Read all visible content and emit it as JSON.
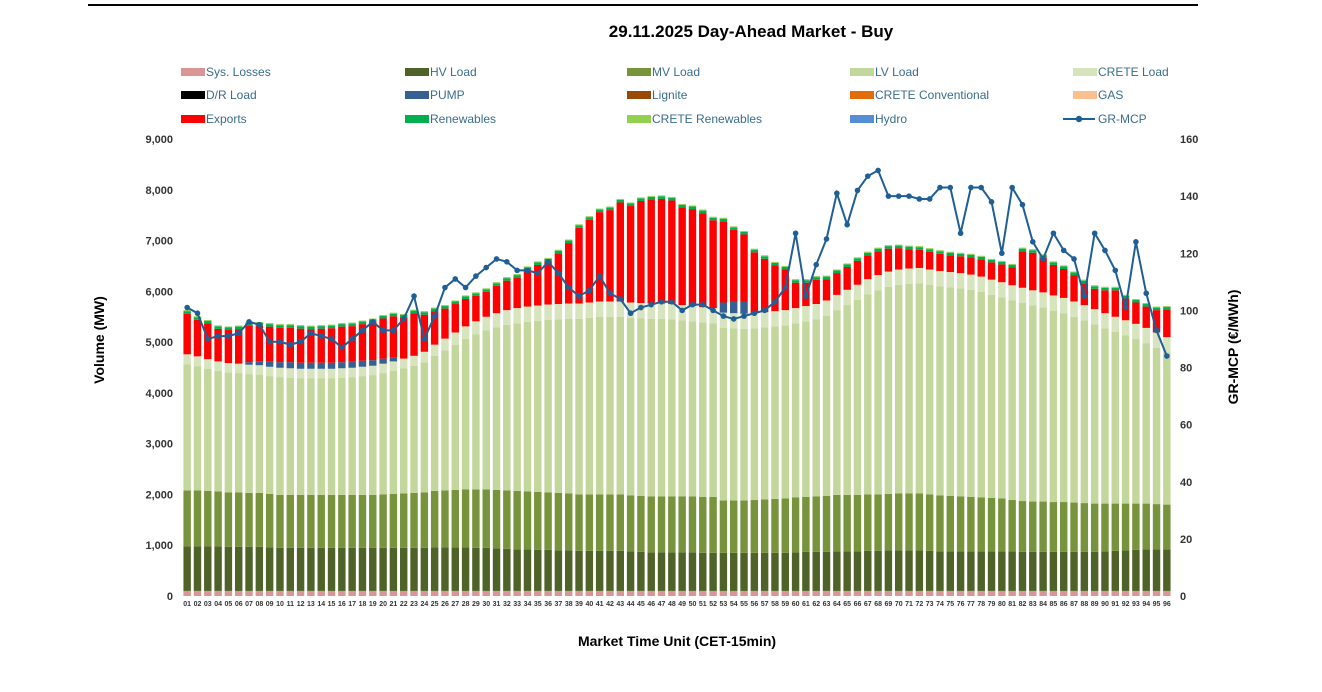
{
  "chart_data": {
    "type": "bar",
    "title": "29.11.2025  Day-Ahead Market - Buy",
    "xlabel": "Market Time Unit (CET-15min)",
    "ylabel": "Volume (MW)",
    "y2label": "GR-MCP (€/MWh)",
    "ylim": [
      0,
      9000
    ],
    "y2lim": [
      0,
      160
    ],
    "yticks": [
      "0",
      "1,000",
      "2,000",
      "3,000",
      "4,000",
      "5,000",
      "6,000",
      "7,000",
      "8,000",
      "9,000"
    ],
    "y2ticks": [
      "0",
      "20",
      "40",
      "60",
      "80",
      "100",
      "120",
      "140",
      "160"
    ],
    "categories": [
      "01",
      "02",
      "03",
      "04",
      "05",
      "06",
      "07",
      "08",
      "09",
      "10",
      "11",
      "12",
      "13",
      "14",
      "15",
      "16",
      "17",
      "18",
      "19",
      "20",
      "21",
      "22",
      "23",
      "24",
      "25",
      "26",
      "27",
      "28",
      "29",
      "30",
      "31",
      "32",
      "33",
      "34",
      "35",
      "36",
      "37",
      "38",
      "39",
      "40",
      "41",
      "42",
      "43",
      "44",
      "45",
      "46",
      "47",
      "48",
      "49",
      "50",
      "51",
      "52",
      "53",
      "54",
      "55",
      "56",
      "57",
      "58",
      "59",
      "60",
      "61",
      "62",
      "63",
      "64",
      "65",
      "66",
      "67",
      "68",
      "69",
      "70",
      "71",
      "72",
      "73",
      "74",
      "75",
      "76",
      "77",
      "78",
      "79",
      "80",
      "81",
      "82",
      "83",
      "84",
      "85",
      "86",
      "87",
      "88",
      "89",
      "90",
      "91",
      "92",
      "93",
      "94",
      "95",
      "96"
    ],
    "legend": [
      {
        "name": "Sys. Losses",
        "color": "#d99694",
        "kind": "box"
      },
      {
        "name": "HV Load",
        "color": "#4f6228",
        "kind": "box"
      },
      {
        "name": "MV Load",
        "color": "#77933c",
        "kind": "box"
      },
      {
        "name": "LV Load",
        "color": "#c3d69b",
        "kind": "box"
      },
      {
        "name": "CRETE Load",
        "color": "#d7e4bd",
        "kind": "box"
      },
      {
        "name": "D/R Load",
        "color": "#000000",
        "kind": "box"
      },
      {
        "name": "PUMP",
        "color": "#366092",
        "kind": "box"
      },
      {
        "name": "Lignite",
        "color": "#984807",
        "kind": "box"
      },
      {
        "name": "CRETE Conventional",
        "color": "#e36c09",
        "kind": "box"
      },
      {
        "name": "GAS",
        "color": "#fac090",
        "kind": "box"
      },
      {
        "name": "Exports",
        "color": "#ff0000",
        "kind": "box"
      },
      {
        "name": "Renewables",
        "color": "#00b050",
        "kind": "box"
      },
      {
        "name": "CRETE Renewables",
        "color": "#92d050",
        "kind": "box"
      },
      {
        "name": "Hydro",
        "color": "#558ed5",
        "kind": "box"
      },
      {
        "name": "GR-MCP",
        "color": "#1f5f96",
        "kind": "line"
      }
    ],
    "series": [
      {
        "name": "Sys. Losses",
        "color": "#d99694",
        "values": [
          100,
          100,
          100,
          100,
          100,
          100,
          100,
          100,
          100,
          100,
          100,
          100,
          100,
          100,
          100,
          100,
          100,
          100,
          100,
          100,
          100,
          100,
          100,
          100,
          100,
          100,
          100,
          100,
          100,
          100,
          100,
          100,
          100,
          100,
          100,
          100,
          100,
          100,
          100,
          100,
          100,
          100,
          100,
          100,
          100,
          100,
          100,
          100,
          100,
          100,
          100,
          100,
          100,
          100,
          100,
          100,
          100,
          100,
          100,
          100,
          100,
          100,
          100,
          100,
          100,
          100,
          100,
          100,
          100,
          100,
          100,
          100,
          100,
          100,
          100,
          100,
          100,
          100,
          100,
          100,
          100,
          100,
          100,
          100,
          100,
          100,
          100,
          100,
          100,
          100,
          100,
          100,
          100,
          100,
          100,
          100
        ]
      },
      {
        "name": "HV Load",
        "color": "#4f6228",
        "values": [
          880,
          880,
          880,
          880,
          870,
          870,
          870,
          870,
          860,
          850,
          850,
          850,
          850,
          850,
          850,
          850,
          850,
          850,
          850,
          850,
          850,
          850,
          850,
          850,
          860,
          860,
          860,
          860,
          850,
          850,
          840,
          830,
          820,
          820,
          810,
          810,
          800,
          800,
          790,
          790,
          790,
          790,
          790,
          780,
          770,
          760,
          760,
          760,
          760,
          760,
          750,
          750,
          750,
          750,
          750,
          750,
          750,
          750,
          750,
          760,
          770,
          770,
          770,
          780,
          780,
          780,
          790,
          790,
          800,
          800,
          800,
          800,
          790,
          780,
          780,
          780,
          780,
          780,
          780,
          780,
          780,
          770,
          770,
          770,
          770,
          770,
          770,
          770,
          770,
          780,
          790,
          800,
          810,
          820,
          820,
          820
        ]
      },
      {
        "name": "MV Load",
        "color": "#77933c",
        "values": [
          1100,
          1100,
          1090,
          1080,
          1070,
          1070,
          1060,
          1060,
          1050,
          1040,
          1040,
          1040,
          1040,
          1040,
          1040,
          1040,
          1040,
          1040,
          1040,
          1050,
          1060,
          1070,
          1080,
          1090,
          1110,
          1120,
          1130,
          1140,
          1150,
          1150,
          1150,
          1150,
          1150,
          1140,
          1140,
          1130,
          1130,
          1120,
          1110,
          1110,
          1110,
          1110,
          1110,
          1100,
          1100,
          1100,
          1100,
          1100,
          1100,
          1100,
          1100,
          1100,
          1030,
          1030,
          1030,
          1040,
          1050,
          1060,
          1070,
          1080,
          1080,
          1090,
          1100,
          1110,
          1110,
          1110,
          1110,
          1110,
          1110,
          1120,
          1120,
          1120,
          1110,
          1100,
          1090,
          1080,
          1070,
          1060,
          1050,
          1040,
          1010,
          1000,
          990,
          990,
          980,
          980,
          970,
          960,
          950,
          940,
          930,
          920,
          910,
          900,
          890,
          880
        ]
      },
      {
        "name": "LV Load",
        "color": "#c3d69b",
        "values": [
          2480,
          2440,
          2400,
          2370,
          2360,
          2350,
          2340,
          2330,
          2320,
          2320,
          2310,
          2300,
          2300,
          2300,
          2300,
          2310,
          2320,
          2340,
          2360,
          2390,
          2420,
          2460,
          2500,
          2560,
          2660,
          2760,
          2860,
          2960,
          3050,
          3130,
          3200,
          3260,
          3300,
          3340,
          3370,
          3400,
          3420,
          3440,
          3460,
          3480,
          3500,
          3500,
          3500,
          3500,
          3500,
          3500,
          3500,
          3490,
          3470,
          3450,
          3440,
          3420,
          3400,
          3390,
          3380,
          3380,
          3390,
          3400,
          3410,
          3430,
          3460,
          3490,
          3550,
          3640,
          3740,
          3840,
          3940,
          4020,
          4080,
          4110,
          4130,
          4140,
          4130,
          4120,
          4110,
          4100,
          4080,
          4050,
          4000,
          3960,
          3930,
          3900,
          3860,
          3820,
          3770,
          3720,
          3660,
          3600,
          3530,
          3450,
          3380,
          3310,
          3240,
          3160,
          3080,
          3000
        ]
      },
      {
        "name": "CRETE Load",
        "color": "#d7e4bd",
        "values": [
          200,
          200,
          195,
          190,
          188,
          186,
          185,
          185,
          185,
          185,
          185,
          185,
          185,
          185,
          185,
          185,
          185,
          185,
          185,
          185,
          190,
          195,
          200,
          210,
          220,
          230,
          240,
          250,
          260,
          270,
          280,
          290,
          300,
          300,
          300,
          300,
          300,
          300,
          300,
          300,
          300,
          300,
          300,
          300,
          300,
          300,
          300,
          300,
          300,
          300,
          300,
          300,
          300,
          300,
          300,
          300,
          300,
          300,
          300,
          300,
          300,
          300,
          300,
          300,
          300,
          300,
          300,
          300,
          300,
          300,
          300,
          300,
          300,
          300,
          300,
          300,
          300,
          300,
          300,
          300,
          300,
          300,
          300,
          300,
          300,
          300,
          300,
          300,
          300,
          300,
          300,
          300,
          300,
          300,
          300,
          300
        ]
      },
      {
        "name": "D/R Load",
        "color": "#000000",
        "values": [
          0,
          0,
          0,
          0,
          0,
          0,
          0,
          0,
          0,
          0,
          0,
          0,
          0,
          0,
          0,
          0,
          0,
          0,
          0,
          0,
          0,
          0,
          0,
          0,
          0,
          0,
          0,
          0,
          0,
          0,
          0,
          0,
          0,
          0,
          0,
          0,
          0,
          0,
          0,
          0,
          0,
          0,
          0,
          0,
          0,
          0,
          0,
          0,
          0,
          0,
          0,
          0,
          0,
          0,
          0,
          0,
          0,
          0,
          0,
          0,
          0,
          0,
          0,
          0,
          0,
          0,
          0,
          0,
          0,
          0,
          0,
          0,
          0,
          0,
          0,
          0,
          0,
          0,
          0,
          0,
          0,
          0,
          0,
          0,
          0,
          0,
          0,
          0,
          0,
          0,
          0,
          0,
          0,
          0,
          0,
          0
        ]
      },
      {
        "name": "PUMP",
        "color": "#366092",
        "values": [
          0,
          0,
          0,
          0,
          0,
          0,
          50,
          80,
          100,
          110,
          120,
          120,
          120,
          120,
          120,
          120,
          120,
          120,
          110,
          100,
          80,
          0,
          0,
          0,
          0,
          0,
          0,
          0,
          0,
          0,
          0,
          0,
          0,
          0,
          0,
          0,
          0,
          0,
          0,
          0,
          0,
          0,
          0,
          0,
          0,
          0,
          0,
          0,
          0,
          0,
          0,
          0,
          200,
          240,
          240,
          0,
          0,
          0,
          0,
          0,
          0,
          0,
          0,
          0,
          0,
          0,
          0,
          0,
          0,
          0,
          0,
          0,
          0,
          0,
          0,
          0,
          0,
          0,
          0,
          0,
          0,
          0,
          0,
          0,
          0,
          0,
          0,
          0,
          0,
          0,
          0,
          0,
          0,
          0,
          0,
          0
        ]
      },
      {
        "name": "Exports",
        "color": "#ff0000",
        "values": [
          800,
          720,
          700,
          640,
          650,
          680,
          720,
          700,
          690,
          680,
          680,
          670,
          660,
          670,
          680,
          700,
          700,
          720,
          750,
          790,
          810,
          810,
          840,
          730,
          660,
          590,
          560,
          540,
          500,
          490,
          540,
          580,
          600,
          720,
          800,
          850,
          1000,
          1190,
          1490,
          1630,
          1760,
          1800,
          1950,
          1900,
          2010,
          2050,
          2060,
          2040,
          1920,
          1910,
          1850,
          1730,
          1600,
          1400,
          1320,
          1200,
          1050,
          900,
          800,
          500,
          460,
          480,
          420,
          430,
          450,
          470,
          470,
          470,
          450,
          420,
          380,
          360,
          350,
          340,
          330,
          330,
          340,
          340,
          340,
          350,
          350,
          720,
          740,
          680,
          600,
          570,
          520,
          430,
          400,
          450,
          520,
          430,
          420,
          420,
          440,
          540
        ]
      },
      {
        "name": "Renewables",
        "color": "#00b050",
        "values": [
          50,
          50,
          50,
          50,
          50,
          50,
          50,
          50,
          50,
          50,
          50,
          50,
          50,
          50,
          50,
          50,
          50,
          50,
          50,
          50,
          50,
          50,
          50,
          50,
          50,
          50,
          50,
          50,
          50,
          50,
          50,
          50,
          50,
          50,
          50,
          50,
          50,
          50,
          50,
          50,
          50,
          50,
          50,
          50,
          50,
          50,
          50,
          50,
          50,
          50,
          50,
          50,
          50,
          50,
          50,
          50,
          50,
          50,
          50,
          50,
          50,
          50,
          50,
          50,
          50,
          50,
          50,
          50,
          50,
          50,
          50,
          50,
          50,
          50,
          50,
          50,
          50,
          50,
          50,
          50,
          50,
          50,
          50,
          50,
          50,
          50,
          50,
          50,
          50,
          50,
          50,
          50,
          50,
          50,
          50,
          50
        ]
      },
      {
        "name": "CRETE Renewables",
        "color": "#92d050",
        "values": [
          20,
          20,
          20,
          20,
          20,
          20,
          20,
          20,
          20,
          20,
          20,
          20,
          20,
          20,
          20,
          20,
          20,
          20,
          20,
          20,
          20,
          20,
          20,
          20,
          20,
          20,
          20,
          20,
          20,
          20,
          20,
          20,
          20,
          20,
          20,
          20,
          20,
          20,
          20,
          20,
          20,
          20,
          20,
          20,
          20,
          20,
          20,
          20,
          20,
          20,
          20,
          20,
          20,
          20,
          20,
          20,
          20,
          20,
          20,
          20,
          20,
          20,
          20,
          20,
          20,
          20,
          20,
          20,
          20,
          20,
          20,
          20,
          20,
          20,
          20,
          20,
          20,
          20,
          20,
          20,
          20,
          20,
          20,
          20,
          20,
          20,
          20,
          20,
          20,
          20,
          20,
          20,
          20,
          20,
          20,
          20
        ]
      }
    ],
    "line": {
      "name": "GR-MCP",
      "color": "#1f5f96",
      "values": [
        101,
        99,
        90,
        91,
        91,
        92,
        96,
        95,
        89,
        89,
        88,
        89,
        92,
        91,
        90,
        87,
        90,
        93,
        96,
        93,
        93,
        97,
        105,
        90,
        98,
        108,
        111,
        108,
        112,
        115,
        118,
        117,
        114,
        114,
        113,
        117,
        113,
        108,
        105,
        107,
        112,
        106,
        104,
        99,
        101,
        102,
        103,
        103,
        100,
        102,
        102,
        100,
        98,
        97,
        98,
        99,
        100,
        103,
        108,
        127,
        105,
        116,
        125,
        141,
        130,
        142,
        147,
        149,
        140,
        140,
        140,
        139,
        139,
        143,
        143,
        127,
        143,
        143,
        138,
        120,
        143,
        137,
        124,
        118,
        127,
        121,
        118,
        105,
        127,
        121,
        114,
        101,
        124,
        106,
        93,
        84
      ]
    }
  }
}
